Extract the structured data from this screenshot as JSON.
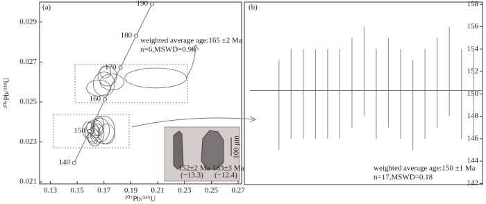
{
  "chart_data": [
    {
      "type": "concordia",
      "panel_label": "(a)",
      "x_label": "²⁰⁷Pb/²³⁵U",
      "y_label": "²⁰⁶Pb/²³⁸U",
      "xlim": [
        0.122,
        0.2725
      ],
      "xticks": [
        0.13,
        0.15,
        0.17,
        0.19,
        0.21,
        0.23,
        0.25,
        0.27
      ],
      "ylim": [
        0.0209,
        0.03
      ],
      "yticks": [
        0.021,
        0.023,
        0.025,
        0.027,
        0.029
      ],
      "concordia": {
        "ages": [
          140,
          150,
          160,
          170,
          180,
          190
        ],
        "x": [
          0.147839,
          0.159194,
          0.170677,
          0.182272,
          0.193967,
          0.205765
        ],
        "y": [
          0.021955,
          0.023542,
          0.025131,
          0.026722,
          0.028316,
          0.029912
        ]
      },
      "ellipses": [
        {
          "x": 0.17,
          "y": 0.0259,
          "x_err": 0.008,
          "y_err": 0.0006
        },
        {
          "x": 0.1725,
          "y": 0.0263,
          "x_err": 0.007,
          "y_err": 0.0005
        },
        {
          "x": 0.166,
          "y": 0.0257,
          "x_err": 0.009,
          "y_err": 0.0004
        },
        {
          "x": 0.176,
          "y": 0.026,
          "x_err": 0.009,
          "y_err": 0.0004
        },
        {
          "x": 0.171,
          "y": 0.0265,
          "x_err": 0.004,
          "y_err": 0.0003
        },
        {
          "x": 0.2085,
          "y": 0.0262,
          "x_err": 0.023,
          "y_err": 0.0005
        },
        {
          "x": 0.158,
          "y": 0.0236,
          "x_err": 0.004,
          "y_err": 0.0004
        },
        {
          "x": 0.161,
          "y": 0.0235,
          "x_err": 0.005,
          "y_err": 0.0005
        },
        {
          "x": 0.163,
          "y": 0.0237,
          "x_err": 0.006,
          "y_err": 0.0004
        },
        {
          "x": 0.165,
          "y": 0.0234,
          "x_err": 0.005,
          "y_err": 0.0005
        },
        {
          "x": 0.167,
          "y": 0.0236,
          "x_err": 0.007,
          "y_err": 0.0006
        },
        {
          "x": 0.162,
          "y": 0.0233,
          "x_err": 0.004,
          "y_err": 0.0004
        },
        {
          "x": 0.166,
          "y": 0.0238,
          "x_err": 0.004,
          "y_err": 0.0005
        },
        {
          "x": 0.17,
          "y": 0.0236,
          "x_err": 0.008,
          "y_err": 0.0007
        },
        {
          "x": 0.164,
          "y": 0.0235,
          "x_err": 0.003,
          "y_err": 0.0003
        },
        {
          "x": 0.16,
          "y": 0.0237,
          "x_err": 0.003,
          "y_err": 0.0003
        },
        {
          "x": 0.172,
          "y": 0.0234,
          "x_err": 0.006,
          "y_err": 0.0005
        },
        {
          "x": 0.163,
          "y": 0.0232,
          "x_err": 0.005,
          "y_err": 0.0004
        }
      ],
      "annotation": [
        "weighted average age:165 ±2 Ma",
        "n=6,MSWD=0.96"
      ],
      "inset": {
        "scale": "100 μm",
        "grain_labels": [
          "152±2 Ma",
          "(−13.3)",
          "163±3 Ma",
          "(−12.4)"
        ]
      },
      "color": "#666666"
    },
    {
      "type": "errorbar",
      "panel_label": "(b)",
      "categories": [
        null,
        null,
        null,
        null,
        null,
        null,
        null,
        null,
        null,
        null,
        null,
        null,
        null,
        null,
        null,
        null,
        null
      ],
      "values": [
        149,
        150,
        150,
        150,
        150,
        150,
        151,
        152,
        150,
        151,
        150,
        149,
        150,
        151,
        152,
        150,
        150
      ],
      "errors": [
        4,
        4,
        4,
        4,
        4,
        4,
        4,
        4,
        4,
        4,
        4,
        4,
        4,
        4,
        4,
        4,
        4
      ],
      "mean": 150.3,
      "ylim": [
        141.9,
        158.2
      ],
      "yticks": [
        142,
        144,
        146,
        148,
        150,
        152,
        154,
        156,
        158
      ],
      "annotation": [
        "weighted average age:150 ±1 Ma",
        "n=17,MSWD=0.18"
      ],
      "color": "#999999"
    }
  ]
}
